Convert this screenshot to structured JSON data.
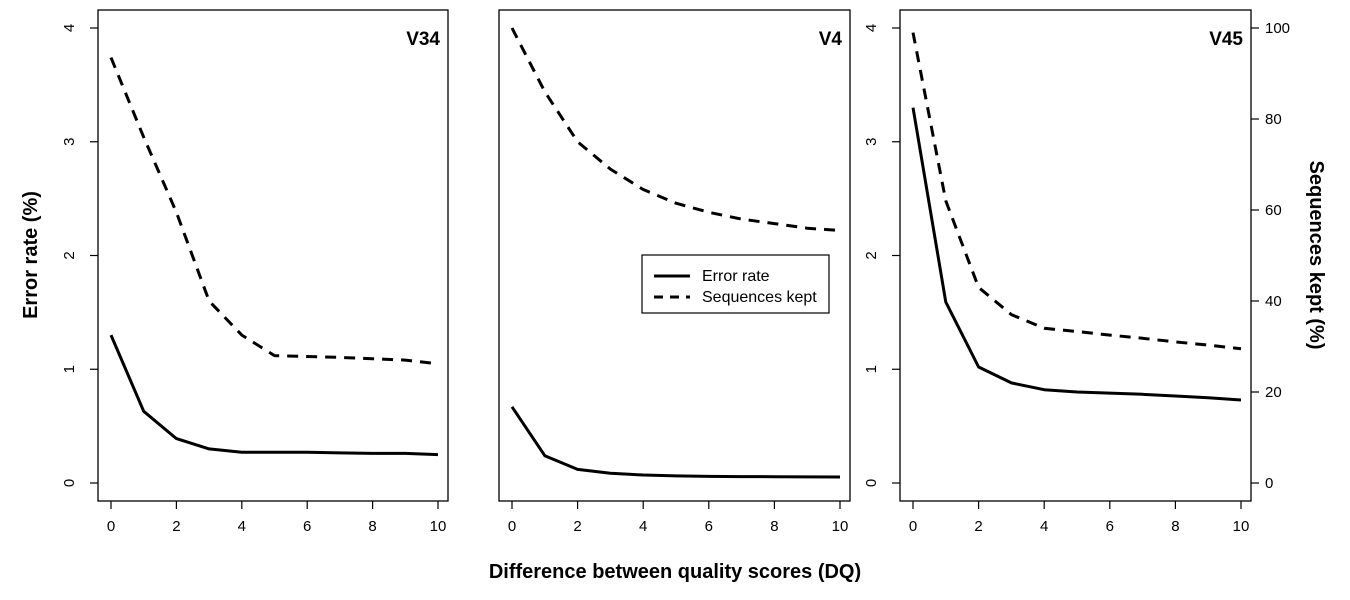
{
  "chart_data": {
    "type": "line",
    "xlabel": "Difference between quality scores (DQ)",
    "ylabel_left": "Error rate (%)",
    "ylabel_right": "Sequences kept (%)",
    "xlim": [
      0,
      10
    ],
    "x_ticks": [
      0,
      2,
      4,
      6,
      8,
      10
    ],
    "left_ylim": [
      0,
      4
    ],
    "left_y_ticks": [
      0,
      1,
      2,
      3,
      4
    ],
    "right_ylim": [
      0,
      100
    ],
    "right_y_ticks": [
      0,
      20,
      40,
      60,
      80,
      100
    ],
    "legend": {
      "placement": "center (middle panel)",
      "entries": [
        {
          "label": "Error rate",
          "style": "solid"
        },
        {
          "label": "Sequences kept",
          "style": "dashed"
        }
      ]
    },
    "x": [
      0,
      1,
      2,
      3,
      4,
      5,
      6,
      7,
      8,
      9,
      10
    ],
    "panels": [
      {
        "label": "V34",
        "series": [
          {
            "name": "Error rate",
            "values": [
              1.3,
              0.63,
              0.39,
              0.3,
              0.27,
              0.27,
              0.27,
              0.265,
              0.26,
              0.26,
              0.25
            ]
          },
          {
            "name": "Sequences kept",
            "values": [
              93.5,
              76,
              59.5,
              40,
              32.5,
              28,
              27.8,
              27.6,
              27.3,
              27,
              26.2
            ]
          }
        ]
      },
      {
        "label": "V4",
        "series": [
          {
            "name": "Error rate",
            "values": [
              0.67,
              0.24,
              0.12,
              0.085,
              0.07,
              0.062,
              0.058,
              0.056,
              0.055,
              0.054,
              0.053
            ]
          },
          {
            "name": "Sequences kept",
            "values": [
              100,
              86,
              75,
              69,
              64.5,
              61.5,
              59.5,
              58,
              57,
              56,
              55.5
            ]
          }
        ]
      },
      {
        "label": "V45",
        "series": [
          {
            "name": "Error rate",
            "values": [
              3.3,
              1.59,
              1.02,
              0.88,
              0.82,
              0.8,
              0.79,
              0.78,
              0.765,
              0.75,
              0.73
            ]
          },
          {
            "name": "Sequences kept",
            "values": [
              99,
              62,
              43,
              37,
              34,
              33.3,
              32.5,
              31.8,
              31,
              30.3,
              29.5
            ]
          }
        ]
      }
    ]
  }
}
